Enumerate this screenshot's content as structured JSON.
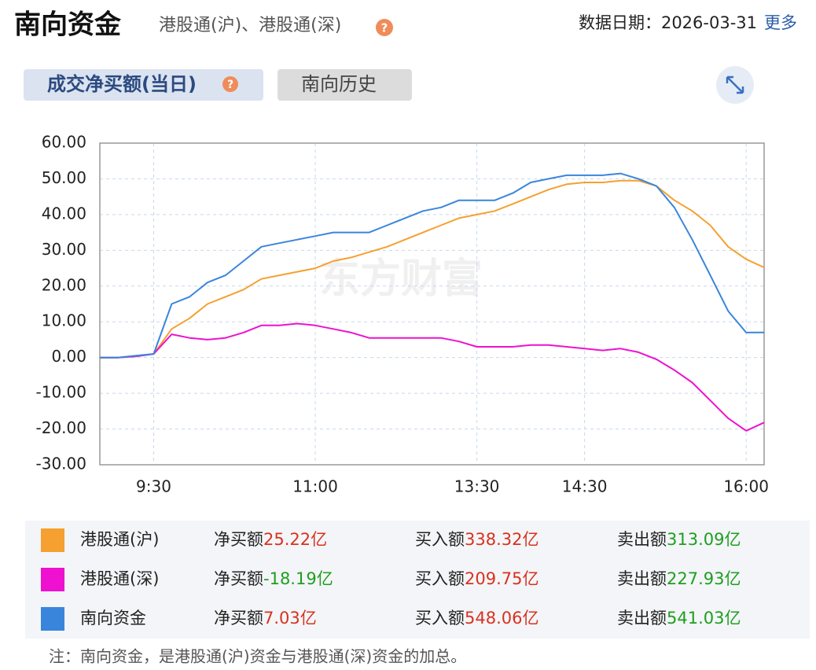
{
  "header": {
    "title": "南向资金",
    "subtitle": "港股通(沪)、港股通(深)",
    "help": "?",
    "date_label": "数据日期：2026-03-31",
    "more": "更多"
  },
  "tabs": [
    {
      "label": "成交净买额(当日)",
      "help": "?"
    },
    {
      "label": "南向历史"
    }
  ],
  "chart_data": {
    "type": "line",
    "watermark": "东方财富",
    "categories": [
      null,
      null,
      null,
      "9:30",
      null,
      null,
      null,
      null,
      null,
      null,
      null,
      null,
      "11:00",
      null,
      null,
      null,
      null,
      null,
      null,
      null,
      null,
      "13:30",
      null,
      null,
      null,
      null,
      null,
      "14:30",
      null,
      null,
      null,
      null,
      null,
      null,
      null,
      null,
      "16:00",
      null
    ],
    "series": [
      {
        "name": "港股通(沪)",
        "color": "#f5a030",
        "values": [
          0,
          0,
          0.5,
          1,
          8,
          11,
          15,
          17,
          19,
          22,
          23,
          24,
          25,
          27,
          28,
          29.5,
          31,
          33,
          35,
          37,
          39,
          40,
          41,
          43,
          45,
          47,
          48.5,
          49,
          49,
          49.5,
          49.5,
          48,
          44,
          41,
          37,
          31,
          27.5,
          25.22
        ]
      },
      {
        "name": "港股通(深)",
        "color": "#ee11d0",
        "values": [
          0,
          0,
          0.3,
          1,
          6.5,
          5.5,
          5,
          5.5,
          7,
          9,
          9,
          9.5,
          9,
          8,
          7,
          5.5,
          5.5,
          5.5,
          5.5,
          5.5,
          4.5,
          3,
          3,
          3,
          3.5,
          3.5,
          3,
          2.5,
          2,
          2.5,
          1.5,
          -0.5,
          -3.5,
          -7,
          -12,
          -17,
          -20.5,
          -18.19
        ]
      },
      {
        "name": "南向资金",
        "color": "#3a85dc",
        "values": [
          0,
          0,
          0.5,
          1,
          15,
          17,
          21,
          23,
          27,
          31,
          32,
          33,
          34,
          35,
          35,
          35,
          37,
          39,
          41,
          42,
          44,
          44,
          44,
          46,
          49,
          50,
          51,
          51,
          51,
          51.5,
          50,
          48,
          42,
          33,
          23,
          13,
          7,
          7.03
        ]
      }
    ],
    "ylim": [
      -30,
      60
    ],
    "yticks": [
      {
        "value": -30,
        "label": "-30.00"
      },
      {
        "value": -20,
        "label": "-20.00"
      },
      {
        "value": -10,
        "label": "-10.00"
      },
      {
        "value": 0,
        "label": "0.00"
      },
      {
        "value": 10,
        "label": "10.00"
      },
      {
        "value": 20,
        "label": "20.00"
      },
      {
        "value": 30,
        "label": "30.00"
      },
      {
        "value": 40,
        "label": "40.00"
      },
      {
        "value": 50,
        "label": "50.00"
      },
      {
        "value": 60,
        "label": "60.00"
      }
    ],
    "grid": true
  },
  "summary": {
    "net_label": "净买额",
    "buy_label": "买入额",
    "sell_label": "卖出额",
    "rows": [
      {
        "net": {
          "text": "25.22亿",
          "color": "#d8321e"
        },
        "buy": {
          "text": "338.32亿",
          "color": "#d8321e"
        },
        "sell": {
          "text": "313.09亿",
          "color": "#1f9e1f"
        }
      },
      {
        "net": {
          "text": "-18.19亿",
          "color": "#1f9e1f"
        },
        "buy": {
          "text": "209.75亿",
          "color": "#d8321e"
        },
        "sell": {
          "text": "227.93亿",
          "color": "#1f9e1f"
        }
      },
      {
        "net": {
          "text": "7.03亿",
          "color": "#d8321e"
        },
        "buy": {
          "text": "548.06亿",
          "color": "#d8321e"
        },
        "sell": {
          "text": "541.03亿",
          "color": "#1f9e1f"
        }
      }
    ]
  },
  "note": "注：南向资金，是港股通(沪)资金与港股通(深)资金的加总。"
}
